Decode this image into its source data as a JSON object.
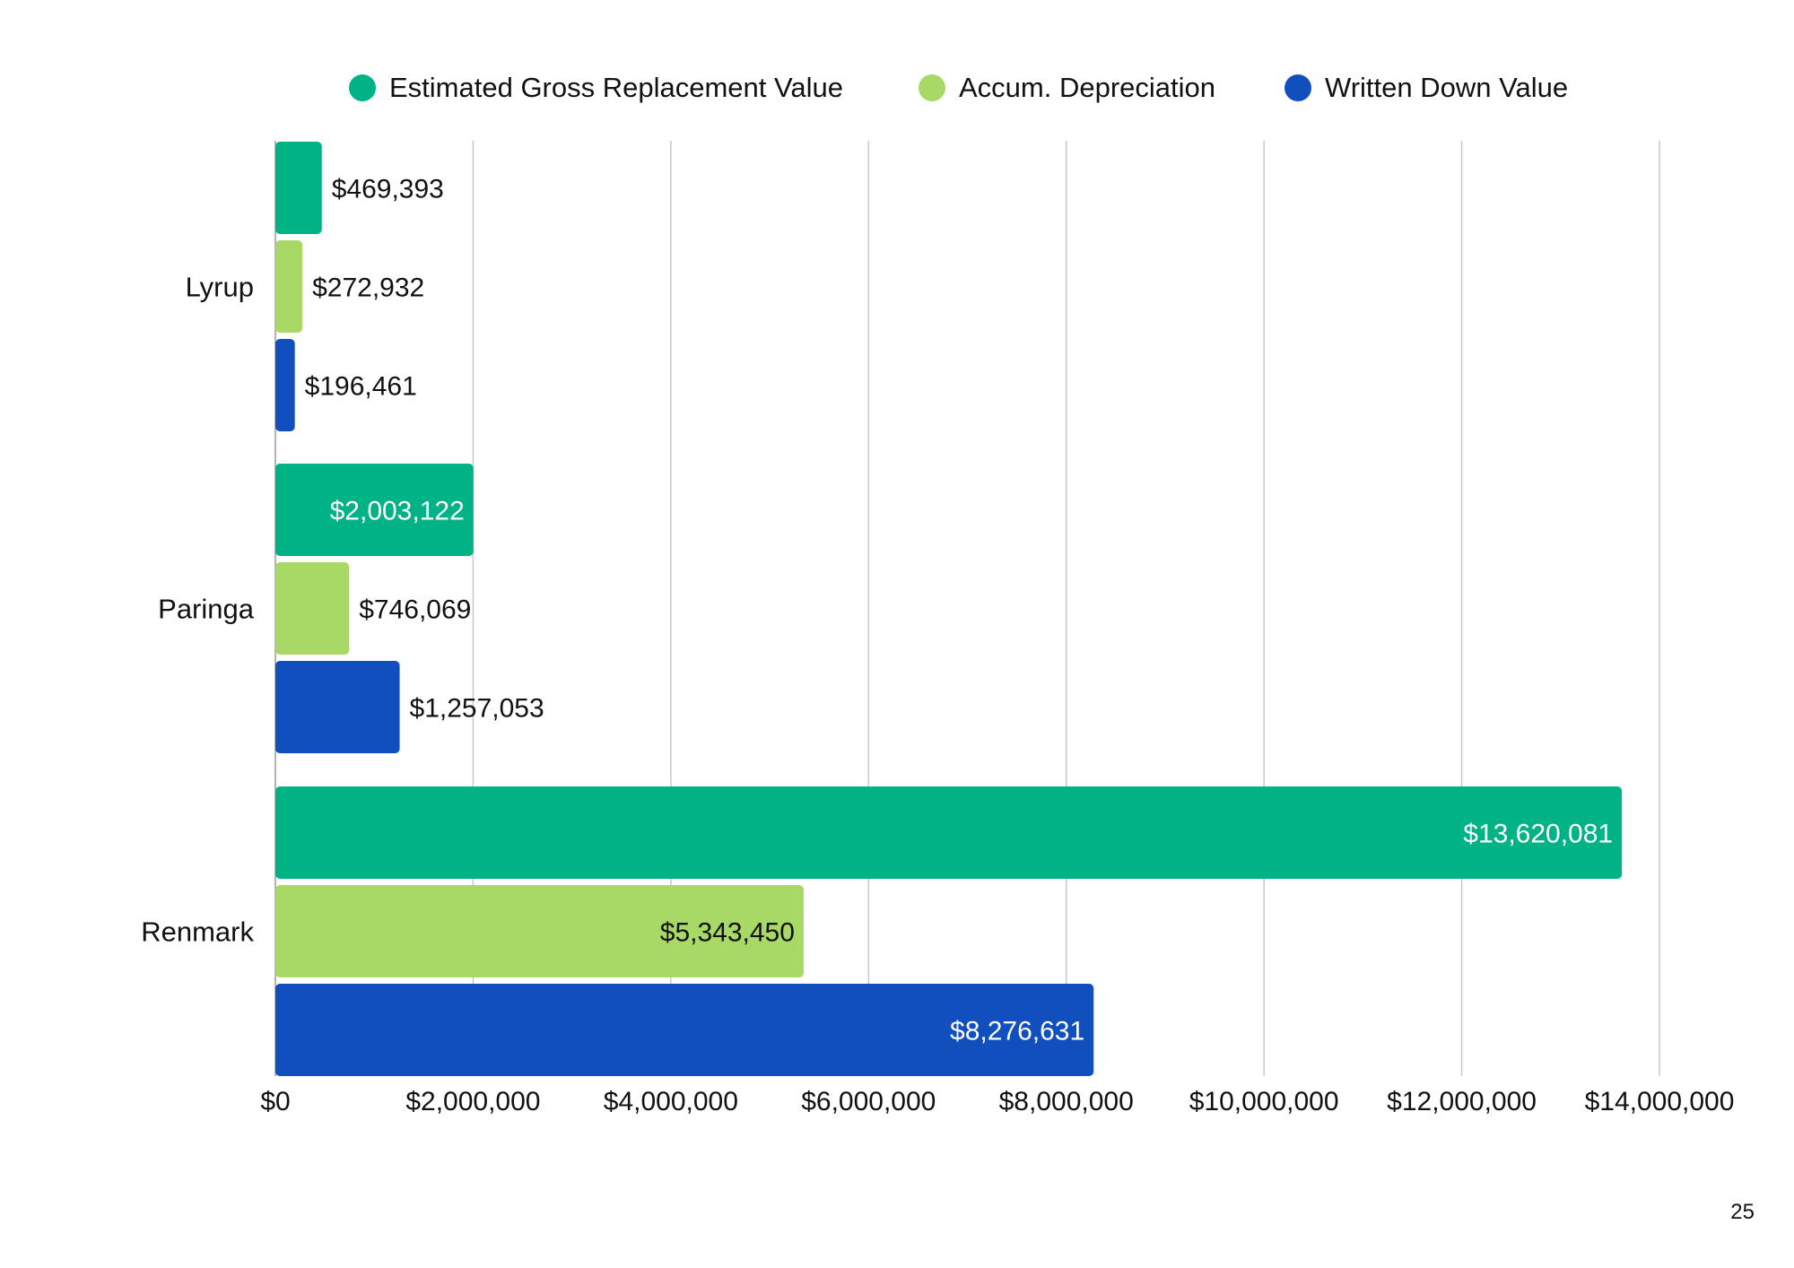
{
  "page": {
    "page_number": "25"
  },
  "colors": {
    "gross": "#00b386",
    "depreciation": "#a8d966",
    "written_down": "#104fbd",
    "grid": "#c8c8c8",
    "text_dark": "#111111",
    "text_light": "#ffffff"
  },
  "chart_data": {
    "type": "bar",
    "orientation": "horizontal",
    "categories": [
      "Lyrup",
      "Paringa",
      "Renmark"
    ],
    "series": [
      {
        "name": "Estimated Gross Replacement Value",
        "values": [
          469393,
          2003122,
          13620081
        ],
        "labels": [
          "$469,393",
          "$2,003,122",
          "$13,620,081"
        ]
      },
      {
        "name": "Accum. Depreciation",
        "values": [
          272932,
          746069,
          5343450
        ],
        "labels": [
          "$272,932",
          "$746,069",
          "$5,343,450"
        ]
      },
      {
        "name": "Written Down Value",
        "values": [
          196461,
          1257053,
          8276631
        ],
        "labels": [
          "$196,461",
          "$1,257,053",
          "$8,276,631"
        ]
      }
    ],
    "xlim": [
      0,
      14000000
    ],
    "xticks": [
      0,
      2000000,
      4000000,
      6000000,
      8000000,
      10000000,
      12000000,
      14000000
    ],
    "xtick_labels": [
      "$0",
      "$2,000,000",
      "$4,000,000",
      "$6,000,000",
      "$8,000,000",
      "$10,000,000",
      "$12,000,000",
      "$14,000,000"
    ],
    "title": "",
    "xlabel": "",
    "ylabel": "",
    "grid": true,
    "legend_position": "top"
  }
}
